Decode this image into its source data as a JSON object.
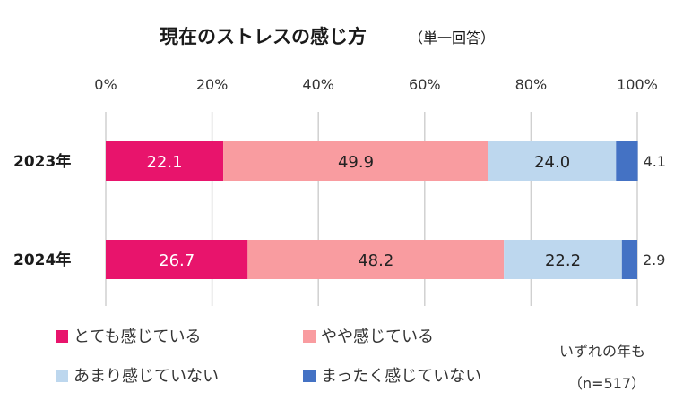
{
  "chart_data": {
    "type": "bar",
    "orientation": "horizontal",
    "stacked": true,
    "title": "現在のストレスの感じ方",
    "subtitle": "（単一回答）",
    "categories": [
      "2023年",
      "2024年"
    ],
    "series": [
      {
        "name": "とても感じている",
        "values": [
          22.1,
          26.7
        ],
        "color": "#e8146c",
        "label_color": "#ffffff"
      },
      {
        "name": "やや感じている",
        "values": [
          49.9,
          48.2
        ],
        "color": "#f99ca0",
        "label_color": "#222222"
      },
      {
        "name": "あまり感じていない",
        "values": [
          24.0,
          22.2
        ],
        "color": "#bdd7ee",
        "label_color": "#222222"
      },
      {
        "name": "まったく感じていない",
        "values": [
          4.1,
          2.9
        ],
        "color": "#4472c4",
        "label_color": "#222222"
      }
    ],
    "value_labels": [
      [
        "22.1",
        "49.9",
        "24.0",
        "4.1"
      ],
      [
        "26.7",
        "48.2",
        "22.2",
        "2.9"
      ]
    ],
    "xlim": [
      0,
      100
    ],
    "x_ticks": [
      "0%",
      "20%",
      "40%",
      "60%",
      "80%",
      "100%"
    ],
    "grid": true,
    "legend_position": "bottom",
    "note_lines": [
      "いずれの年も",
      "（n=517）"
    ]
  }
}
